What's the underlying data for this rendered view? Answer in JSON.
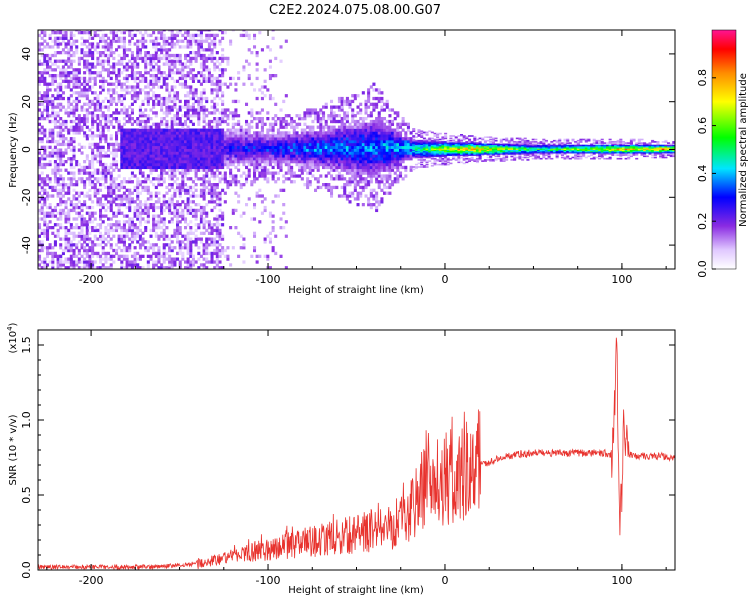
{
  "title": "C2E2.2024.075.08.00.G07",
  "chart_data": [
    {
      "type": "heatmap",
      "xlabel": "Height of straight line (km)",
      "ylabel": "Frequency (Hz)",
      "xlim": [
        -230,
        130
      ],
      "ylim": [
        -50,
        50
      ],
      "x_ticks": [
        -200,
        -100,
        0,
        100
      ],
      "y_ticks": [
        -40,
        -20,
        0,
        20,
        40
      ],
      "colorbar": {
        "label": "Normalized spectral amplitude",
        "range": [
          0.0,
          1.0
        ],
        "ticks": [
          0.0,
          0.2,
          0.4,
          0.6,
          0.8
        ],
        "colors": [
          "#ffffff",
          "#8a2be2",
          "#0000ff",
          "#00e5ff",
          "#00ff00",
          "#ffff00",
          "#ff8c00",
          "#ff0000",
          "#ff1493"
        ]
      },
      "description_points": {
        "heights": [
          -230,
          -180,
          -130,
          -100,
          -70,
          -40,
          -20,
          0,
          20,
          50,
          100,
          130
        ],
        "band_halfwidth_hz": [
          50,
          50,
          8,
          6,
          8,
          12,
          4,
          3,
          2.5,
          2,
          2,
          1.5
        ],
        "peak_amplitude": [
          0.15,
          0.2,
          0.3,
          0.35,
          0.4,
          0.42,
          0.5,
          0.75,
          0.85,
          0.55,
          0.8,
          0.9
        ]
      }
    },
    {
      "type": "line",
      "xlabel": "Height of straight line (km)",
      "ylabel": "SNR (10 * v/v)",
      "multiplier_label": "(x10",
      "multiplier_exp": "4",
      "multiplier_close": ")",
      "xlim": [
        -230,
        130
      ],
      "ylim": [
        0.0,
        1.6
      ],
      "x_ticks": [
        -200,
        -100,
        0,
        100
      ],
      "y_ticks": [
        0.0,
        0.5,
        1.0,
        1.5
      ],
      "y_tick_labels": [
        "0.0",
        "0.5",
        "1.0",
        "1.5"
      ],
      "color": "#e8332e",
      "x": [
        -230,
        -200,
        -170,
        -150,
        -130,
        -110,
        -90,
        -70,
        -50,
        -30,
        -20,
        -10,
        0,
        10,
        20,
        30,
        40,
        50,
        60,
        70,
        80,
        90,
        95,
        97,
        99,
        101,
        103,
        110,
        120,
        130
      ],
      "y": [
        0.02,
        0.02,
        0.02,
        0.03,
        0.06,
        0.12,
        0.16,
        0.2,
        0.24,
        0.3,
        0.42,
        0.55,
        0.6,
        0.62,
        0.7,
        0.74,
        0.77,
        0.78,
        0.78,
        0.78,
        0.78,
        0.78,
        0.75,
        1.55,
        0.3,
        0.9,
        0.77,
        0.76,
        0.76,
        0.75
      ]
    }
  ]
}
